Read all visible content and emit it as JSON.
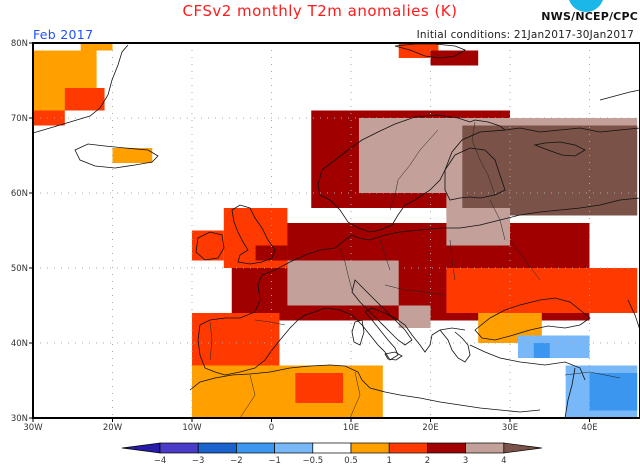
{
  "header": {
    "title": "CFSv2 monthly T2m anomalies (K)",
    "month_label": "Feb 2017",
    "initial_conditions": "Initial conditions: 21Jan2017-30Jan2017",
    "agency": "NWS/NCEP/CPC"
  },
  "map": {
    "lon_range": [
      -30,
      46
    ],
    "lat_range": [
      30,
      80
    ],
    "lat_ticks": [
      {
        "value": 80,
        "label": "80N"
      },
      {
        "value": 70,
        "label": "70N"
      },
      {
        "value": 60,
        "label": "60N"
      },
      {
        "value": 50,
        "label": "50N"
      },
      {
        "value": 40,
        "label": "40N"
      },
      {
        "value": 30,
        "label": "30N"
      }
    ],
    "lon_ticks": [
      {
        "value": -30,
        "label": "30W"
      },
      {
        "value": -20,
        "label": "20W"
      },
      {
        "value": -10,
        "label": "10W"
      },
      {
        "value": 0,
        "label": "0"
      },
      {
        "value": 10,
        "label": "10E"
      },
      {
        "value": 20,
        "label": "20E"
      },
      {
        "value": 30,
        "label": "30E"
      },
      {
        "value": 40,
        "label": "40E"
      }
    ],
    "anomaly_regions": [
      {
        "name": "greenland-east",
        "category": "0.5-1",
        "lon": [
          -30,
          -22
        ],
        "lat": [
          71,
          79
        ]
      },
      {
        "name": "greenland-north",
        "category": "0.5-1",
        "lon": [
          -24,
          -20
        ],
        "lat": [
          79,
          80
        ]
      },
      {
        "name": "greenland-coast",
        "category": "1-2",
        "lon": [
          -26,
          -21
        ],
        "lat": [
          71,
          74
        ]
      },
      {
        "name": "greenland-south",
        "category": "1-2",
        "lon": [
          -30,
          -26
        ],
        "lat": [
          69,
          71
        ]
      },
      {
        "name": "iceland",
        "category": "0.5-1",
        "lon": [
          -20,
          -15
        ],
        "lat": [
          64,
          66
        ]
      },
      {
        "name": "svalbard",
        "category": "1-2",
        "lon": [
          16,
          21
        ],
        "lat": [
          78,
          80
        ]
      },
      {
        "name": "svalbard-east",
        "category": "2-3",
        "lon": [
          20,
          26
        ],
        "lat": [
          77,
          79
        ]
      },
      {
        "name": "norway-coast",
        "category": "2-3",
        "lon": [
          5,
          30
        ],
        "lat": [
          58,
          71
        ]
      },
      {
        "name": "scandinavia-interior",
        "category": "3-4",
        "lon": [
          11,
          30
        ],
        "lat": [
          60,
          70
        ]
      },
      {
        "name": "finland-russia-north",
        "category": "3-4",
        "lon": [
          22,
          46
        ],
        "lat": [
          57,
          70
        ]
      },
      {
        "name": "russia-core",
        "category": ">4",
        "lon": [
          24,
          46
        ],
        "lat": [
          57,
          69
        ]
      },
      {
        "name": "central-europe",
        "category": "2-3",
        "lon": [
          -5,
          40
        ],
        "lat": [
          43,
          56
        ]
      },
      {
        "name": "alps-france",
        "category": "3-4",
        "lon": [
          2,
          16
        ],
        "lat": [
          45,
          51
        ]
      },
      {
        "name": "balkans-pink",
        "category": "3-4",
        "lon": [
          16,
          20
        ],
        "lat": [
          42,
          45
        ]
      },
      {
        "name": "poland-pink",
        "category": "3-4",
        "lon": [
          22,
          30
        ],
        "lat": [
          53,
          58
        ]
      },
      {
        "name": "ukraine",
        "category": "1-2",
        "lon": [
          22,
          46
        ],
        "lat": [
          44,
          50
        ]
      },
      {
        "name": "ukraine-south",
        "category": "0.5-1",
        "lon": [
          26,
          34
        ],
        "lat": [
          40,
          44
        ]
      },
      {
        "name": "britain",
        "category": "1-2",
        "lon": [
          -6,
          2
        ],
        "lat": [
          50,
          58
        ]
      },
      {
        "name": "britain-east",
        "category": "2-3",
        "lon": [
          -2,
          2
        ],
        "lat": [
          51,
          53
        ]
      },
      {
        "name": "ireland",
        "category": "1-2",
        "lon": [
          -10,
          -6
        ],
        "lat": [
          51,
          55
        ]
      },
      {
        "name": "iberia",
        "category": "1-2",
        "lon": [
          -10,
          1
        ],
        "lat": [
          37,
          44
        ]
      },
      {
        "name": "north-africa",
        "category": "0.5-1",
        "lon": [
          -10,
          14
        ],
        "lat": [
          30,
          37
        ]
      },
      {
        "name": "north-africa-red",
        "category": "1-2",
        "lon": [
          3,
          9
        ],
        "lat": [
          32,
          36
        ]
      },
      {
        "name": "turkey-cold",
        "category": "-1--0.5",
        "lon": [
          31,
          40
        ],
        "lat": [
          38,
          41
        ]
      },
      {
        "name": "turkey-cold-core",
        "category": "-2--1",
        "lon": [
          33,
          35
        ],
        "lat": [
          38,
          40
        ]
      },
      {
        "name": "middle-east-cold",
        "category": "-1--0.5",
        "lon": [
          37,
          46
        ],
        "lat": [
          30,
          37
        ]
      },
      {
        "name": "middle-east-cold-core",
        "category": "-2--1",
        "lon": [
          40,
          46
        ],
        "lat": [
          31,
          36
        ]
      }
    ]
  },
  "colorbar": {
    "bins": [
      {
        "range": "< -4",
        "color": "#2a1aa8"
      },
      {
        "range": "-4 to -3",
        "color": "#4a3cc6"
      },
      {
        "range": "-3 to -2",
        "color": "#1a62cc"
      },
      {
        "range": "-2 to -1",
        "color": "#3a96ee"
      },
      {
        "range": "-1 to -0.5",
        "color": "#78b8f8"
      },
      {
        "range": "-0.5 to 0.5",
        "color": "#ffffff"
      },
      {
        "range": "0.5 to 1",
        "color": "#ffa000"
      },
      {
        "range": "1 to 2",
        "color": "#ff3a00"
      },
      {
        "range": "2 to 3",
        "color": "#a00000"
      },
      {
        "range": "3 to 4",
        "color": "#c4a09a"
      },
      {
        "range": "> 4",
        "color": "#7a5248"
      }
    ],
    "labels": [
      "-4",
      "-3",
      "-2",
      "-1",
      "-0.5",
      "0.5",
      "1",
      "2",
      "3",
      "4"
    ]
  }
}
